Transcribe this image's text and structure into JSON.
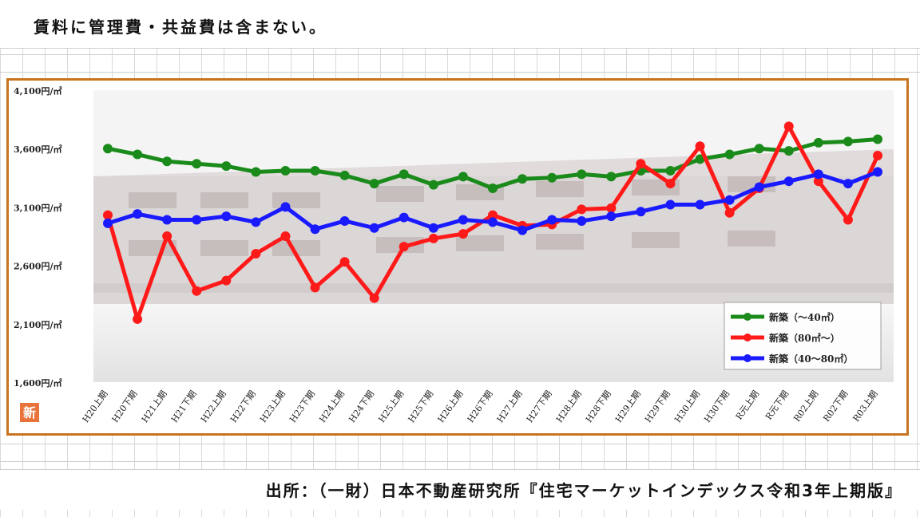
{
  "note": "賃料に管理費・共益費は含まない。",
  "source": "出所：（一財）日本不動産研究所『住宅マーケットインデックス令和3年上期版』",
  "badge": "新",
  "colors": {
    "frame": "#c8741e",
    "green": "#1a8a1a",
    "red": "#ff1a1a",
    "blue": "#1a1aff"
  },
  "chart_data": {
    "type": "line",
    "categories": [
      "H20上期",
      "H20下期",
      "H21上期",
      "H21下期",
      "H22上期",
      "H22下期",
      "H23上期",
      "H23下期",
      "H24上期",
      "H24下期",
      "H25上期",
      "H25下期",
      "H26上期",
      "H26下期",
      "H27上期",
      "H27下期",
      "H28上期",
      "H28下期",
      "H29上期",
      "H29下期",
      "H30上期",
      "H30下期",
      "R元上期",
      "R元下期",
      "R02上期",
      "R02下期",
      "R03上期"
    ],
    "yticks": [
      "4,100円/㎡",
      "3,600円/㎡",
      "3,100円/㎡",
      "2,600円/㎡",
      "2,100円/㎡",
      "1,600円/㎡"
    ],
    "ylim": [
      1600,
      4100
    ],
    "grid": false,
    "legend_position": "bottom-right",
    "series": [
      {
        "name": "新築（～40㎡）",
        "color": "#1a8a1a",
        "values": [
          3600,
          3550,
          3490,
          3470,
          3450,
          3400,
          3410,
          3410,
          3370,
          3300,
          3380,
          3290,
          3360,
          3260,
          3340,
          3350,
          3380,
          3360,
          3410,
          3410,
          3510,
          3550,
          3600,
          3580,
          3650,
          3660,
          3680
        ]
      },
      {
        "name": "新築（80㎡～）",
        "color": "#ff1a1a",
        "values": [
          3030,
          2140,
          2850,
          2380,
          2470,
          2700,
          2850,
          2410,
          2630,
          2320,
          2760,
          2830,
          2870,
          3030,
          2940,
          2950,
          3080,
          3090,
          3470,
          3300,
          3620,
          3050,
          3260,
          3790,
          3320,
          2990,
          3540
        ]
      },
      {
        "name": "新築（40～80㎡）",
        "color": "#1a1aff",
        "values": [
          2960,
          3040,
          2990,
          2990,
          3020,
          2970,
          3100,
          2910,
          2980,
          2920,
          3010,
          2920,
          2990,
          2970,
          2900,
          2990,
          2980,
          3020,
          3060,
          3120,
          3120,
          3160,
          3270,
          3320,
          3380,
          3300,
          3400
        ]
      }
    ]
  }
}
